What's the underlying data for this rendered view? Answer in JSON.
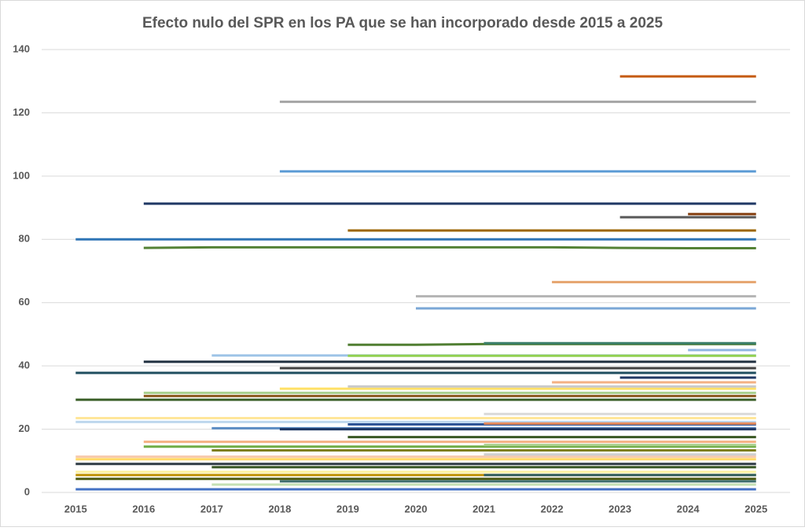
{
  "chart_data": {
    "type": "line",
    "title": "Efecto nulo del SPR en los PA que se han incorporado desde 2015 a 2025",
    "categories": [
      "2015",
      "2016",
      "2017",
      "2018",
      "2019",
      "2020",
      "2021",
      "2022",
      "2023",
      "2024",
      "2025"
    ],
    "ylim": [
      0,
      140
    ],
    "yticks": [
      0,
      20,
      40,
      60,
      80,
      100,
      120,
      140
    ],
    "grid": true,
    "series": [
      {
        "color": "#2e75b6",
        "values": [
          80,
          80,
          80,
          80,
          80,
          80,
          80,
          80,
          80,
          80,
          80
        ]
      },
      {
        "color": "#1f4e5f",
        "values": [
          37.8,
          37.8,
          37.8,
          37.8,
          37.8,
          37.8,
          37.8,
          37.8,
          37.8,
          37.8,
          37.8
        ]
      },
      {
        "color": "#3a5f28",
        "values": [
          29.3,
          29.3,
          29.3,
          29.3,
          29.3,
          29.3,
          29.3,
          29.3,
          29.3,
          29.3,
          29.3
        ]
      },
      {
        "color": "#ffe699",
        "values": [
          23.5,
          23.5,
          23.5,
          23.5,
          23.5,
          23.5,
          23.5,
          23.5,
          23.5,
          23.5,
          23.5
        ]
      },
      {
        "color": "#bdd7ee",
        "values": [
          22.3,
          22.3,
          22.3,
          22.3,
          22.3,
          22.3,
          22.3,
          22.3,
          22.3,
          22.3,
          22.3
        ]
      },
      {
        "color": "#f8cbad",
        "values": [
          11.3,
          11.3,
          11.3,
          11.3,
          11.3,
          11.3,
          11.3,
          11.3,
          11.3,
          11.3,
          11.3
        ]
      },
      {
        "color": "#ffd966",
        "values": [
          10.5,
          10.5,
          10.5,
          10.5,
          10.5,
          10.5,
          10.5,
          10.5,
          10.5,
          10.5,
          10.5
        ]
      },
      {
        "color": "#2f3b44",
        "values": [
          9,
          9,
          9,
          9,
          9,
          9,
          9,
          9,
          9,
          9,
          9
        ]
      },
      {
        "color": "#fff2a0",
        "values": [
          6.5,
          6.5,
          6.5,
          6.5,
          6.5,
          6.5,
          6.5,
          6.5,
          6.5,
          6.5,
          6.5
        ]
      },
      {
        "color": "#bf9000",
        "values": [
          5.5,
          5.5,
          5.5,
          5.5,
          5.5,
          5.5,
          5.5,
          5.5,
          5.5,
          5.5,
          5.5
        ]
      },
      {
        "color": "#4d5a12",
        "values": [
          4.3,
          4.3,
          4.3,
          4.3,
          4.3,
          4.3,
          4.3,
          4.3,
          4.3,
          4.3,
          4.3
        ]
      },
      {
        "color": "#4472c4",
        "values": [
          1,
          1,
          1,
          1,
          1,
          1,
          1,
          1,
          1,
          1,
          1
        ]
      },
      {
        "color": "#1f3864",
        "values": [
          null,
          91.3,
          91.3,
          91.3,
          91.3,
          91.3,
          91.3,
          91.3,
          91.3,
          91.3,
          91.3
        ]
      },
      {
        "color": "#203040",
        "values": [
          null,
          41.3,
          41.3,
          41.3,
          41.3,
          41.3,
          41.3,
          41.3,
          41.3,
          41.3,
          41.3
        ]
      },
      {
        "color": "#a9d18e",
        "values": [
          null,
          31.5,
          31.5,
          31.5,
          31.5,
          31.5,
          31.5,
          31.5,
          31.5,
          31.5,
          31.5
        ]
      },
      {
        "color": "#8b5a1e",
        "values": [
          null,
          30.5,
          30.5,
          30.5,
          30.5,
          30.5,
          30.5,
          30.5,
          30.5,
          30.5,
          30.5
        ]
      },
      {
        "color": "#f4b183",
        "values": [
          null,
          16,
          16,
          16,
          16,
          16,
          16,
          16,
          16,
          16,
          16
        ]
      },
      {
        "color": "#70ad47",
        "values": [
          null,
          14.5,
          14.5,
          14.5,
          14.5,
          14.5,
          14.5,
          14.5,
          14.5,
          14.5,
          14.5
        ]
      },
      {
        "color": "#548235",
        "values": [
          null,
          77.3,
          77.5,
          77.5,
          77.5,
          77.5,
          77.5,
          77.5,
          77.3,
          77.2,
          77.2
        ]
      },
      {
        "color": "#9dc3e6",
        "values": [
          null,
          null,
          43.3,
          43.3,
          43.3,
          43.3,
          43.3,
          43.3,
          43.3,
          43.3,
          43.3
        ]
      },
      {
        "color": "#5b8cc4",
        "values": [
          null,
          null,
          20.3,
          20.3,
          20.3,
          20.3,
          20.3,
          20.3,
          20.3,
          20.3,
          20.3
        ]
      },
      {
        "color": "#7f7f20",
        "values": [
          null,
          null,
          13.3,
          13.3,
          13.3,
          13.3,
          13.3,
          13.3,
          13.3,
          13.3,
          13.3
        ]
      },
      {
        "color": "#375623",
        "values": [
          null,
          null,
          8,
          8,
          8,
          8,
          8,
          8,
          8,
          8,
          8
        ]
      },
      {
        "color": "#c5e0b4",
        "values": [
          null,
          null,
          2.5,
          2.5,
          2.5,
          2.5,
          2.5,
          2.5,
          2.5,
          2.5,
          2.5
        ]
      },
      {
        "color": "#a5a5a5",
        "values": [
          null,
          null,
          null,
          123.5,
          123.5,
          123.5,
          123.5,
          123.5,
          123.5,
          123.5,
          123.5
        ]
      },
      {
        "color": "#5b9bd5",
        "values": [
          null,
          null,
          null,
          101.5,
          101.5,
          101.5,
          101.5,
          101.5,
          101.5,
          101.5,
          101.5
        ]
      },
      {
        "color": "#404040",
        "values": [
          null,
          null,
          null,
          39.3,
          39.3,
          39.3,
          39.3,
          39.3,
          39.3,
          39.3,
          39.3
        ]
      },
      {
        "color": "#ffe066",
        "values": [
          null,
          null,
          null,
          32.8,
          32.8,
          32.8,
          32.8,
          32.8,
          32.8,
          32.8,
          32.8
        ]
      },
      {
        "color": "#1f3864",
        "values": [
          null,
          null,
          null,
          20,
          20,
          20,
          20,
          20,
          20,
          20,
          20
        ]
      },
      {
        "color": "#3f6f6f",
        "values": [
          null,
          null,
          null,
          3.5,
          3.5,
          3.5,
          3.5,
          3.5,
          3.5,
          3.5,
          3.5
        ]
      },
      {
        "color": "#9c6500",
        "values": [
          null,
          null,
          null,
          null,
          82.8,
          82.8,
          82.8,
          82.8,
          82.8,
          82.8,
          82.8
        ]
      },
      {
        "color": "#92d050",
        "values": [
          null,
          null,
          null,
          null,
          43.2,
          43.2,
          43.2,
          43.2,
          43.2,
          43.2,
          43.2
        ]
      },
      {
        "color": "#c9c9c9",
        "values": [
          null,
          null,
          null,
          null,
          33.5,
          33.5,
          33.5,
          33.5,
          33.5,
          33.5,
          33.5
        ]
      },
      {
        "color": "#2f5597",
        "values": [
          null,
          null,
          null,
          null,
          21.5,
          21.5,
          21.5,
          21.5,
          21.5,
          21.5,
          21.5
        ]
      },
      {
        "color": "#385723",
        "values": [
          null,
          null,
          null,
          null,
          17.5,
          17.5,
          17.5,
          17.5,
          17.5,
          17.5,
          17.5
        ]
      },
      {
        "color": "#507e32",
        "values": [
          null,
          null,
          null,
          null,
          46.7,
          46.7,
          46.9,
          46.9,
          46.9,
          46.9,
          46.9
        ]
      },
      {
        "color": "#b4b4b4",
        "values": [
          null,
          null,
          null,
          null,
          null,
          62,
          62,
          62,
          62,
          62,
          62
        ]
      },
      {
        "color": "#7aa7d6",
        "values": [
          null,
          null,
          null,
          null,
          null,
          58.2,
          58.2,
          58.2,
          58.2,
          58.2,
          58.2
        ]
      },
      {
        "color": "#3b7f6a",
        "values": [
          null,
          null,
          null,
          null,
          null,
          null,
          47.2,
          47.2,
          47.2,
          47.2,
          47.2
        ]
      },
      {
        "color": "#d9d9d9",
        "values": [
          null,
          null,
          null,
          null,
          null,
          null,
          24.8,
          24.8,
          24.8,
          24.8,
          24.8
        ]
      },
      {
        "color": "#e2885a",
        "values": [
          null,
          null,
          null,
          null,
          null,
          null,
          21.8,
          21.8,
          21.8,
          21.8,
          21.8
        ]
      },
      {
        "color": "#a9d08e",
        "values": [
          null,
          null,
          null,
          null,
          null,
          null,
          15,
          15,
          15,
          15,
          15
        ]
      },
      {
        "color": "#cfcfcf",
        "values": [
          null,
          null,
          null,
          null,
          null,
          null,
          12,
          12,
          12,
          12,
          12
        ]
      },
      {
        "color": "#2d5d5d",
        "values": [
          null,
          null,
          null,
          null,
          null,
          null,
          5.5,
          5.5,
          5.5,
          5.5,
          5.5
        ]
      },
      {
        "color": "#e6a46e",
        "values": [
          null,
          null,
          null,
          null,
          null,
          null,
          null,
          66.5,
          66.5,
          66.5,
          66.5
        ]
      },
      {
        "color": "#f4b183",
        "values": [
          null,
          null,
          null,
          null,
          null,
          null,
          null,
          34.8,
          34.8,
          34.8,
          34.8
        ]
      },
      {
        "color": "#c55a11",
        "values": [
          null,
          null,
          null,
          null,
          null,
          null,
          null,
          null,
          131.5,
          131.5,
          131.5
        ]
      },
      {
        "color": "#595959",
        "values": [
          null,
          null,
          null,
          null,
          null,
          null,
          null,
          null,
          87,
          87,
          87
        ]
      },
      {
        "color": "#203864",
        "values": [
          null,
          null,
          null,
          null,
          null,
          null,
          null,
          null,
          36.3,
          36.3,
          36.3
        ]
      },
      {
        "color": "#843c0c",
        "values": [
          null,
          null,
          null,
          null,
          null,
          null,
          null,
          null,
          null,
          88,
          88
        ]
      },
      {
        "color": "#8fb4e3",
        "values": [
          null,
          null,
          null,
          null,
          null,
          null,
          null,
          null,
          null,
          45,
          45
        ]
      }
    ]
  }
}
